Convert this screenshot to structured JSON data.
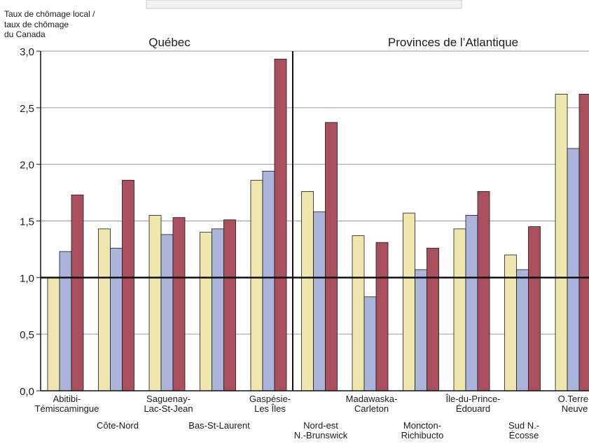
{
  "chart_data": {
    "type": "bar",
    "ylabel_lines": [
      "Taux de chômage local /",
      "taux de chômage",
      "du Canada"
    ],
    "ylim": [
      0,
      3
    ],
    "yticks": [
      "0,0",
      "0,5",
      "1,0",
      "1,5",
      "2,0",
      "2,5",
      "3,0"
    ],
    "ytick_values": [
      0,
      0.5,
      1,
      1.5,
      2,
      2.5,
      3
    ],
    "reference_line": 1.0,
    "grid": true,
    "panel_labels": [
      "Québec",
      "Provinces de l’Atlantique"
    ],
    "categories": [
      "Abitibi-Témiscamingue",
      "Côte-Nord",
      "Saguenay-Lac-St-Jean",
      "Bas-St-Laurent",
      "Gaspésie-Les Îles",
      "Nord-est N.-Brunswick",
      "Madawaska-Carleton",
      "Moncton-Richibucto",
      "Île-du-Prince-Édouard",
      "Sud N.-Écosse",
      "O.Terre-Neuve"
    ],
    "category_label_lines": [
      [
        "Abitibi-",
        "Témiscamingue"
      ],
      [
        "Côte-Nord"
      ],
      [
        "Saguenay-",
        "Lac-St-Jean"
      ],
      [
        "Bas-St-Laurent"
      ],
      [
        "Gaspésie-",
        "Les Îles"
      ],
      [
        "Nord-est",
        "N.-Brunswick"
      ],
      [
        "Madawaska-",
        "Carleton"
      ],
      [
        "Moncton-",
        "Richibucto"
      ],
      [
        "Île-du-Prince-",
        "Édouard"
      ],
      [
        "Sud N.-",
        "Écosse"
      ],
      [
        "O.Terre-",
        "Neuve"
      ]
    ],
    "series": [
      {
        "color": "#efe6ad",
        "values": [
          1.0,
          1.43,
          1.55,
          1.4,
          1.86,
          1.76,
          1.37,
          1.57,
          1.43,
          1.2,
          2.62
        ]
      },
      {
        "color": "#abb5dc",
        "values": [
          1.23,
          1.26,
          1.38,
          1.43,
          1.94,
          1.58,
          0.83,
          1.07,
          1.55,
          1.07,
          2.14
        ]
      },
      {
        "color": "#a94f5e",
        "values": [
          1.73,
          1.86,
          1.53,
          1.51,
          2.93,
          2.37,
          1.31,
          1.26,
          1.76,
          1.45,
          2.62
        ]
      }
    ]
  }
}
